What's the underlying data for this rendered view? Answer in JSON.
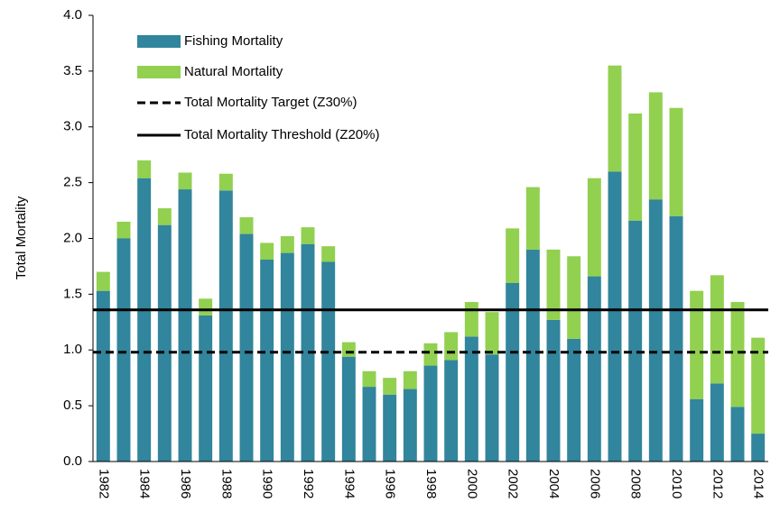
{
  "chart_data": {
    "type": "bar",
    "stacked": true,
    "y_label": "Total Mortality",
    "categories": [
      "1982",
      null,
      "1984",
      null,
      "1986",
      null,
      "1988",
      null,
      "1990",
      null,
      "1992",
      null,
      "1994",
      null,
      "1996",
      null,
      "1998",
      null,
      "2000",
      null,
      "2002",
      null,
      "2004",
      null,
      "2006",
      null,
      "2008",
      null,
      "2010",
      null,
      "2012",
      null,
      "2014"
    ],
    "series": [
      {
        "name": "Fishing Mortality",
        "color": "#31859c",
        "values": [
          1.53,
          2.0,
          2.54,
          2.12,
          2.44,
          1.31,
          2.43,
          2.04,
          1.81,
          1.87,
          1.95,
          1.79,
          0.94,
          0.67,
          0.6,
          0.65,
          0.86,
          0.91,
          1.12,
          0.96,
          1.6,
          1.9,
          1.27,
          1.1,
          1.66,
          2.6,
          2.16,
          2.35,
          2.2,
          0.56,
          0.7,
          0.49,
          0.25
        ]
      },
      {
        "name": "Natural Mortality",
        "color": "#92d050",
        "values": [
          0.17,
          0.15,
          0.16,
          0.15,
          0.15,
          0.15,
          0.15,
          0.15,
          0.15,
          0.15,
          0.15,
          0.14,
          0.13,
          0.14,
          0.15,
          0.16,
          0.2,
          0.25,
          0.31,
          0.38,
          0.49,
          0.56,
          0.63,
          0.74,
          0.88,
          0.95,
          0.96,
          0.96,
          0.97,
          0.97,
          0.97,
          0.94,
          0.86
        ]
      }
    ],
    "reference_lines": [
      {
        "name": "Total Mortality Target (Z30%)",
        "value": 0.98,
        "style": "dashed",
        "color": "#000000"
      },
      {
        "name": "Total Mortality Threshold (Z20%)",
        "value": 1.36,
        "style": "solid",
        "color": "#000000"
      }
    ],
    "ylim": [
      0,
      4
    ],
    "yticks": [
      {
        "value": 0,
        "label": "0.0"
      },
      {
        "value": 0.5,
        "label": "0.5"
      },
      {
        "value": 1,
        "label": "1.0"
      },
      {
        "value": 1.5,
        "label": "1.5"
      },
      {
        "value": 2,
        "label": "2.0"
      },
      {
        "value": 2.5,
        "label": "2.5"
      },
      {
        "value": 3,
        "label": "3.0"
      },
      {
        "value": 3.5,
        "label": "3.5"
      },
      {
        "value": 4,
        "label": "4.0"
      }
    ]
  }
}
